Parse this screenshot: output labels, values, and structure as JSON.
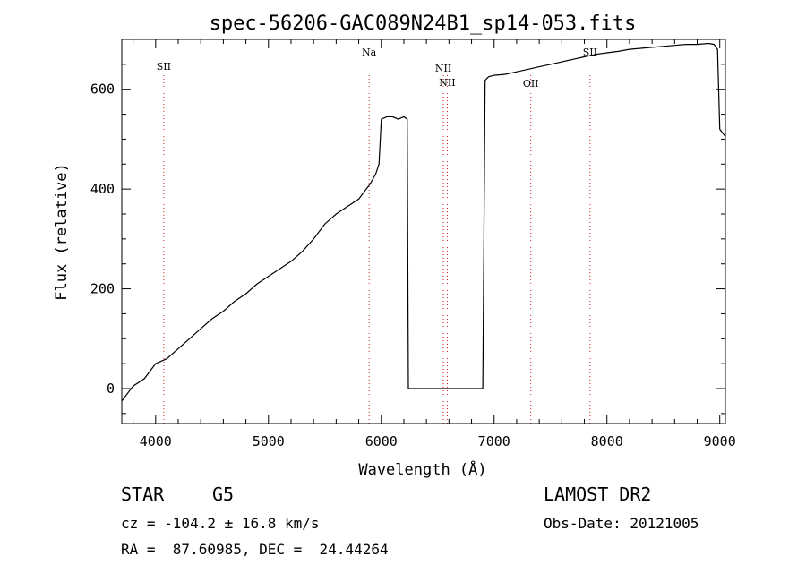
{
  "chart_data": {
    "type": "line",
    "title": "spec-56206-GAC089N24B1_sp14-053.fits",
    "xlabel": "Wavelength (Å)",
    "ylabel": "Flux (relative)",
    "xlim": [
      3700,
      9050
    ],
    "ylim": [
      -70,
      700
    ],
    "x_ticks": [
      4000,
      5000,
      6000,
      7000,
      8000,
      9000
    ],
    "y_ticks": [
      0,
      200,
      400,
      600
    ],
    "grid": false,
    "series": [
      {
        "x": [
          3700,
          3800,
          3900,
          4000,
          4100,
          4200,
          4300,
          4400,
          4500,
          4600,
          4700,
          4800,
          4900,
          5000,
          5100,
          5200,
          5300,
          5400,
          5500,
          5600,
          5700,
          5800,
          5850,
          5900,
          5950,
          5980,
          6000,
          6050,
          6100,
          6150,
          6200,
          6230,
          6240,
          6250,
          6300,
          6500,
          6800,
          6900,
          6920,
          6950,
          7000,
          7100,
          7200,
          7300,
          7400,
          7500,
          7600,
          7700,
          7800,
          7900,
          8000,
          8100,
          8200,
          8300,
          8400,
          8500,
          8600,
          8700,
          8800,
          8900,
          8950,
          8980,
          9000,
          9050
        ],
        "y": [
          -25,
          5,
          20,
          50,
          60,
          80,
          100,
          120,
          140,
          155,
          175,
          190,
          210,
          225,
          240,
          255,
          275,
          300,
          330,
          350,
          365,
          380,
          395,
          410,
          430,
          450,
          540,
          545,
          545,
          540,
          545,
          540,
          0,
          0,
          0,
          0,
          0,
          0,
          618,
          625,
          628,
          630,
          635,
          640,
          645,
          650,
          655,
          660,
          665,
          670,
          673,
          676,
          680,
          682,
          684,
          686,
          688,
          690,
          690,
          692,
          690,
          680,
          520,
          505
        ]
      }
    ],
    "lines": [
      {
        "label": "SII",
        "x": 4072
      },
      {
        "label": "Na",
        "x": 5892
      },
      {
        "label": "NII",
        "x": 6550
      },
      {
        "label": "NII",
        "x": 6585
      },
      {
        "label": "OII",
        "x": 7325
      },
      {
        "label": "SII",
        "x": 7850
      }
    ],
    "line_color": "#cc2222"
  },
  "info": {
    "object_type": "STAR",
    "subclass": "G5",
    "survey": "LAMOST DR2",
    "cz_text": "cz = -104.2 ± 16.8 km/s",
    "obs_date_text": "Obs-Date: 20121005",
    "radec_text": "RA =  87.60985, DEC =  24.44264"
  }
}
